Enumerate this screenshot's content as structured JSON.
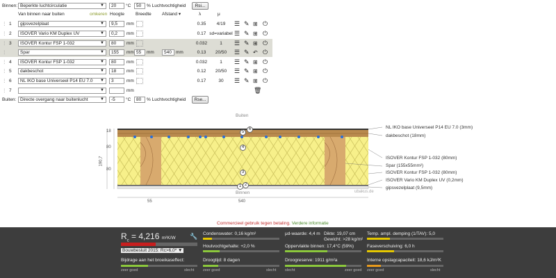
{
  "inside": {
    "label": "Binnen:",
    "condition": "Beperkte luchtcirculatie",
    "temp": "20",
    "temp_unit": "°C",
    "humidity": "50",
    "humidity_unit": "% Luchtvochtigheid",
    "button": "Rsi..."
  },
  "outside": {
    "label": "Buiten:",
    "condition": "Directe overgang naar buitenlucht",
    "temp": "-5",
    "temp_unit": "°C",
    "humidity": "80",
    "humidity_unit": "% Luchtvochtigheid",
    "button": "Rse..."
  },
  "headers": {
    "order": "Van binnen naar buiten",
    "reverse": "omkeren",
    "thickness": "Hoogte",
    "width": "Breedte",
    "distance": "Afstand",
    "lambda": "λ",
    "mu": "μ"
  },
  "layers": [
    {
      "num": "1",
      "material": "gipsvezelplaat",
      "thickness": "9,5",
      "unit": "mm",
      "lambda": "0.35",
      "mu": "4/19"
    },
    {
      "num": "2",
      "material": "ISOVER Vario KM Duplex UV",
      "thickness": "0,2",
      "unit": "mm",
      "lambda": "0.17",
      "mu": "sd=variabel"
    },
    {
      "num": "3",
      "material": "ISOVER Kontur FSP 1-032",
      "thickness": "80",
      "unit": "mm",
      "lambda": "0.032",
      "mu": "1"
    },
    {
      "num": "",
      "material": "Spar",
      "thickness": "155",
      "unit": "mm",
      "width": "55",
      "width_unit": "mm",
      "distance": "540",
      "distance_unit": "mm",
      "lambda": "0.13",
      "mu": "20/50"
    },
    {
      "num": "4",
      "material": "ISOVER Kontur FSP 1-032",
      "thickness": "80",
      "unit": "mm",
      "lambda": "0.032",
      "mu": "1"
    },
    {
      "num": "5",
      "material": "dakbeschot",
      "thickness": "18",
      "unit": "mm",
      "lambda": "0.12",
      "mu": "20/50"
    },
    {
      "num": "6",
      "material": "NL IKO base Universeel P14 EU 7.0",
      "thickness": "3",
      "unit": "mm",
      "lambda": "0.17",
      "mu": "30"
    },
    {
      "num": "7",
      "material": "",
      "thickness": "",
      "unit": "mm",
      "lambda": "",
      "mu": ""
    }
  ],
  "drawing": {
    "top_label": "Buiten",
    "bottom_label": "Binnen",
    "dims_left": [
      "18",
      "80",
      "80",
      "190,7"
    ],
    "dims_bottom": [
      "55",
      "540"
    ],
    "watermark": "ubakus.de",
    "circle_labels": [
      "1",
      "2",
      "3",
      "4",
      "5",
      "6"
    ],
    "annotations": [
      "NL IKO base Universeel P14 EU 7.0 (3mm)",
      "dakbeschot (18mm)",
      "ISOVER Kontur FSP 1-032 (80mm)",
      "Spar (155x55mm²)",
      "ISOVER Kontur FSP 1-032 (80mm)",
      "ISOVER Vario KM Duplex UV (0,2mm)",
      "gipsvezelplaat (9,5mm)"
    ]
  },
  "commercial": {
    "text": "Commercieel gebruik tegen betaling.",
    "link": "Verdere informatie"
  },
  "results": {
    "rc_label": "R",
    "rc_sub": "c",
    "rc_value": "= 4,216",
    "rc_unit": "m²K/W",
    "rc_progress": 0.45,
    "regulation": "Bouwbesluit 2015: Rc>6,0*",
    "greenhouse": "Bijdrage aan het broeikaseffect:",
    "scale_good": "zeer goed",
    "scale_bad": "slecht",
    "condensate": "Condenswater: 0,16 kg/m²",
    "wood_moisture": "Houtvochtgehalte: +2,0 %",
    "drying": "Droogtijd: 8 dagen",
    "mu_value": "μd-waarde: 4,4 m",
    "thickness": "Dikte: 19,07 cm",
    "weight": "Gewicht: >28 kg/m²",
    "surface_temp": "Oppervlakte binnen: 17,4°C (59%)",
    "drying_reserve": "Droogreserve: 1911 g/m²a",
    "amplitude": "Temp. ampl. demping (1/TAV): 5,0",
    "phase_shift": "Faseverschuiving: 6,0 h",
    "heat_capacity": "Interne opslagcapaciteit: 18,6 kJ/m²K",
    "colors": {
      "red": "#c81e1e",
      "green": "#8cc83c",
      "yellow": "#e6c800",
      "orange": "#e89a1c"
    }
  }
}
